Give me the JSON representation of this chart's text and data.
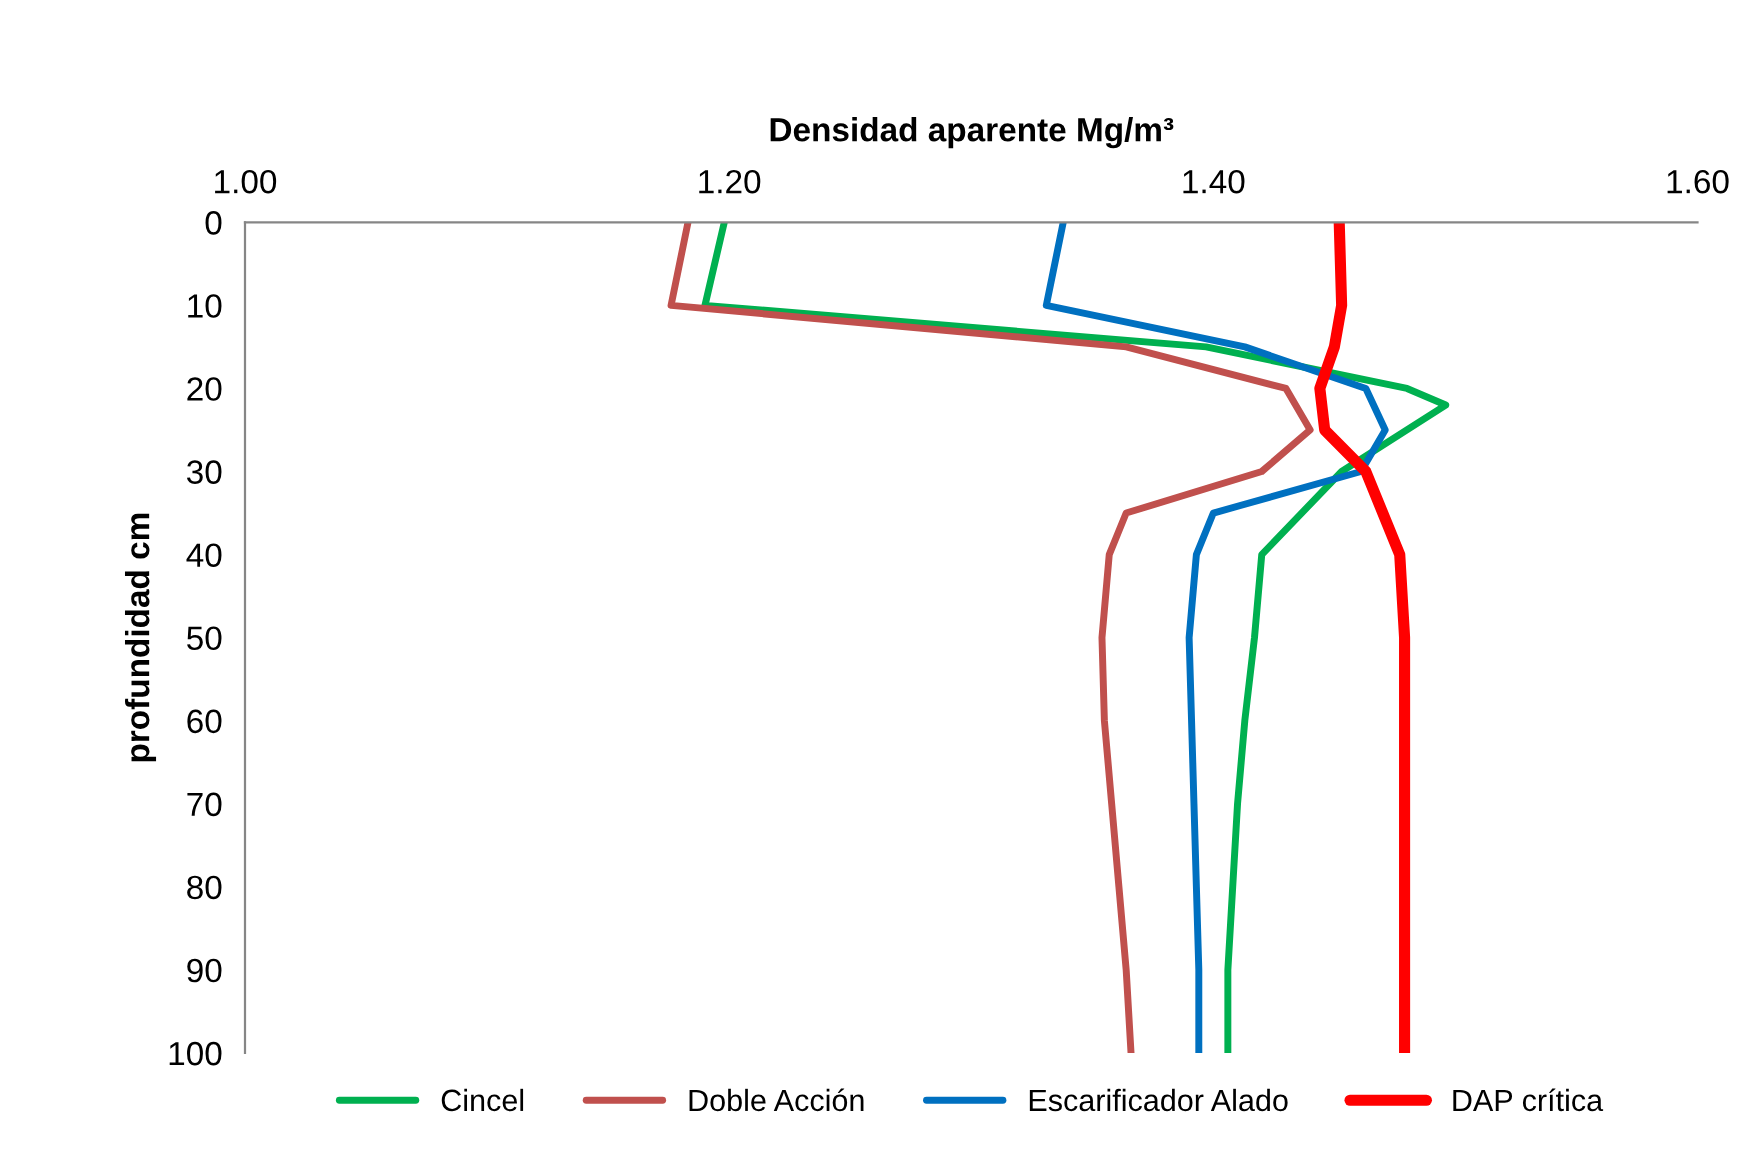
{
  "chart_data": {
    "type": "line",
    "xlabel": "Densidad aparente Mg/m³",
    "ylabel": "profundidad cm",
    "xlim": [
      1.0,
      1.6
    ],
    "xticks": [
      {
        "value": 1.0,
        "label": "1.00"
      },
      {
        "value": 1.2,
        "label": "1.20"
      },
      {
        "value": 1.4,
        "label": "1.40"
      },
      {
        "value": 1.6,
        "label": "1.60"
      }
    ],
    "ylim": [
      100,
      0
    ],
    "yticks": [
      0,
      10,
      20,
      30,
      40,
      50,
      60,
      70,
      80,
      90,
      100
    ],
    "grid": false,
    "legend": "bottom",
    "marker": "none",
    "line_style": "solid",
    "series": [
      {
        "name": "Cincel",
        "color": "#00b050",
        "x": [
          1.198,
          1.19,
          1.397,
          1.48,
          1.496,
          1.453,
          1.42,
          1.417,
          1.413,
          1.41,
          1.408,
          1.406,
          1.406
        ],
        "values": [
          0,
          10,
          15,
          20,
          22,
          30,
          40,
          50,
          60,
          70,
          80,
          90,
          100
        ]
      },
      {
        "name": "Doble Acción",
        "color": "#c0504d",
        "x": [
          1.183,
          1.176,
          1.364,
          1.43,
          1.44,
          1.42,
          1.364,
          1.357,
          1.354,
          1.355,
          1.358,
          1.361,
          1.364,
          1.366
        ],
        "values": [
          0,
          10,
          15,
          20,
          25,
          30,
          35,
          40,
          50,
          60,
          70,
          80,
          90,
          100
        ]
      },
      {
        "name": "Escarificador Alado",
        "color": "#0070c0",
        "x": [
          1.338,
          1.331,
          1.413,
          1.463,
          1.471,
          1.461,
          1.4,
          1.393,
          1.39,
          1.391,
          1.392,
          1.393,
          1.394,
          1.394
        ],
        "values": [
          0,
          10,
          15,
          20,
          25,
          30,
          35,
          40,
          50,
          60,
          70,
          80,
          90,
          100
        ]
      },
      {
        "name": "DAP crítica",
        "color": "#ff0000",
        "x": [
          1.452,
          1.453,
          1.45,
          1.444,
          1.446,
          1.463,
          1.477,
          1.479,
          1.479,
          1.479,
          1.479,
          1.479,
          1.479
        ],
        "values": [
          0,
          10,
          15,
          20,
          25,
          30,
          40,
          50,
          60,
          70,
          80,
          90,
          100
        ]
      }
    ]
  }
}
